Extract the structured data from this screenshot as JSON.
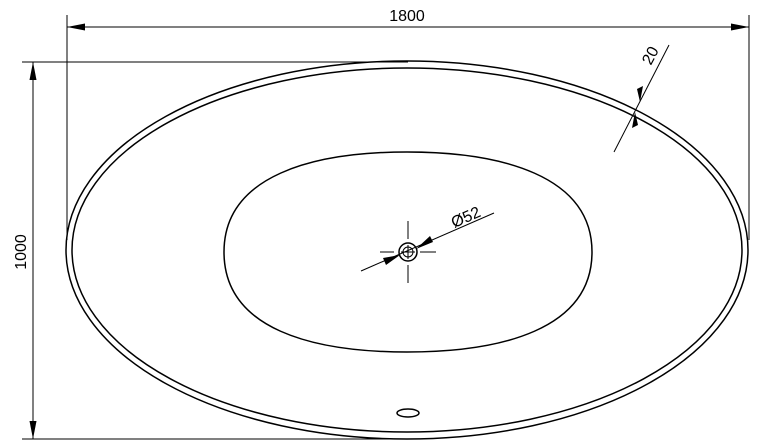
{
  "dimensions": {
    "length": "1800",
    "width": "1000",
    "rim_thickness": "20",
    "drain_diameter": "Ø52"
  }
}
